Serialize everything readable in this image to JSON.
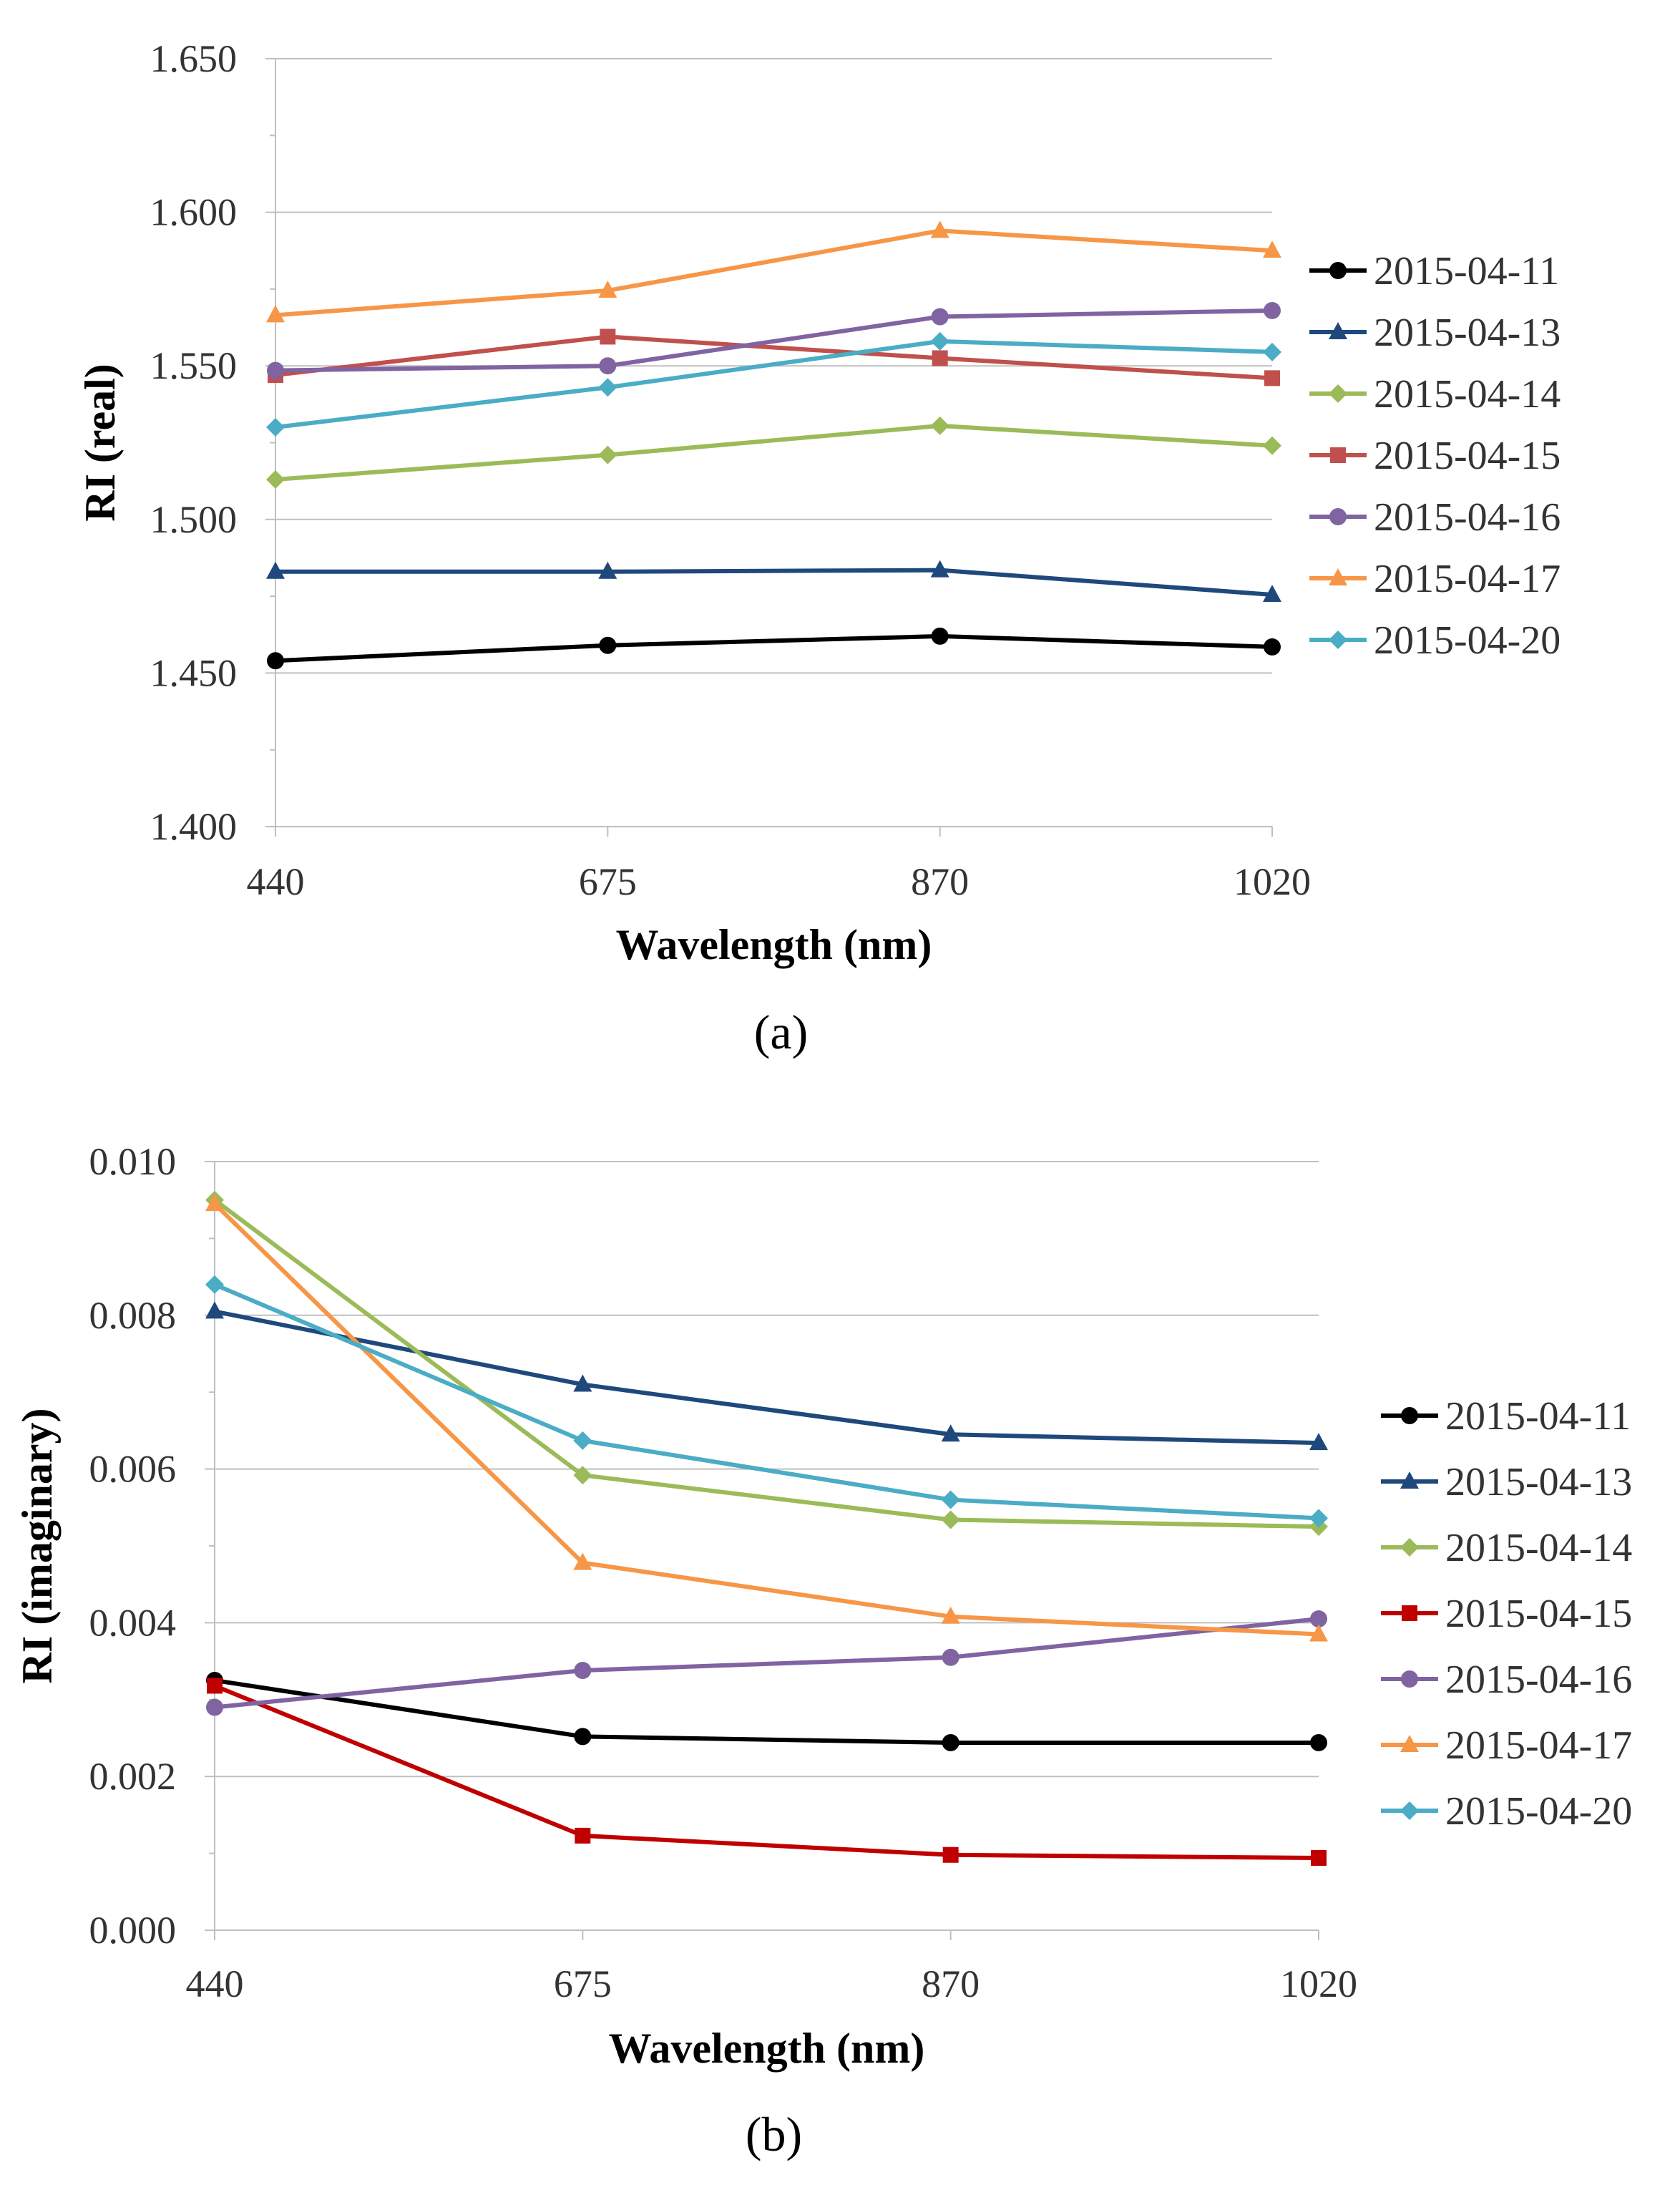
{
  "colors": {
    "2015-04-11": "#000000",
    "2015-04-13": "#1f497d",
    "2015-04-14": "#9bbb59",
    "2015-04-15a": "#c0504d",
    "2015-04-15b": "#c00000",
    "2015-04-16": "#8064a2",
    "2015-04-17": "#f79646",
    "2015-04-20": "#4bacc6",
    "grid": "#bfbfbf",
    "axis": "#bfbfbf"
  },
  "chart_data": [
    {
      "id": "a",
      "type": "line",
      "panel_label": "(a)",
      "title": "",
      "xlabel": "Wavelength (nm)",
      "ylabel": "RI (real)",
      "categories": [
        "440",
        "675",
        "870",
        "1020"
      ],
      "ylim": [
        1.4,
        1.65
      ],
      "yticks": [
        "1.400",
        "1.450",
        "1.500",
        "1.550",
        "1.600",
        "1.650"
      ],
      "grid": true,
      "legend_position": "right",
      "series": [
        {
          "name": "2015-04-11",
          "marker": "circle",
          "color": "#000000",
          "values": [
            1.454,
            1.459,
            1.462,
            1.4585
          ]
        },
        {
          "name": "2015-04-13",
          "marker": "triangle",
          "color": "#1f497d",
          "values": [
            1.483,
            1.483,
            1.4835,
            1.4755
          ]
        },
        {
          "name": "2015-04-14",
          "marker": "diamond",
          "color": "#9bbb59",
          "values": [
            1.513,
            1.521,
            1.5305,
            1.524
          ]
        },
        {
          "name": "2015-04-15",
          "marker": "square",
          "color": "#c0504d",
          "values": [
            1.547,
            1.5595,
            1.5525,
            1.546
          ]
        },
        {
          "name": "2015-04-16",
          "marker": "circle",
          "color": "#8064a2",
          "values": [
            1.5485,
            1.55,
            1.566,
            1.568
          ]
        },
        {
          "name": "2015-04-17",
          "marker": "triangle",
          "color": "#f79646",
          "values": [
            1.5665,
            1.5745,
            1.594,
            1.5875
          ]
        },
        {
          "name": "2015-04-20",
          "marker": "diamond",
          "color": "#4bacc6",
          "values": [
            1.53,
            1.543,
            1.558,
            1.5545
          ]
        }
      ]
    },
    {
      "id": "b",
      "type": "line",
      "panel_label": "(b)",
      "title": "",
      "xlabel": "Wavelength (nm)",
      "ylabel": "RI (imaginary)",
      "categories": [
        "440",
        "675",
        "870",
        "1020"
      ],
      "ylim": [
        0,
        0.01
      ],
      "yticks": [
        "0.000",
        "0.002",
        "0.004",
        "0.006",
        "0.008",
        "0.010"
      ],
      "grid": true,
      "legend_position": "right",
      "series": [
        {
          "name": "2015-04-11",
          "marker": "circle",
          "color": "#000000",
          "values": [
            0.00325,
            0.00252,
            0.00244,
            0.00244
          ]
        },
        {
          "name": "2015-04-13",
          "marker": "triangle",
          "color": "#1f497d",
          "values": [
            0.00805,
            0.0071,
            0.00645,
            0.00634
          ]
        },
        {
          "name": "2015-04-14",
          "marker": "diamond",
          "color": "#9bbb59",
          "values": [
            0.0095,
            0.00592,
            0.00534,
            0.00525
          ]
        },
        {
          "name": "2015-04-15",
          "marker": "square",
          "color": "#c00000",
          "values": [
            0.00318,
            0.00123,
            0.00098,
            0.00094
          ]
        },
        {
          "name": "2015-04-16",
          "marker": "circle",
          "color": "#8064a2",
          "values": [
            0.0029,
            0.00338,
            0.00355,
            0.00405
          ]
        },
        {
          "name": "2015-04-17",
          "marker": "triangle",
          "color": "#f79646",
          "values": [
            0.00945,
            0.00478,
            0.00408,
            0.00385
          ]
        },
        {
          "name": "2015-04-20",
          "marker": "diamond",
          "color": "#4bacc6",
          "values": [
            0.0084,
            0.00637,
            0.0056,
            0.00536
          ]
        }
      ]
    }
  ]
}
